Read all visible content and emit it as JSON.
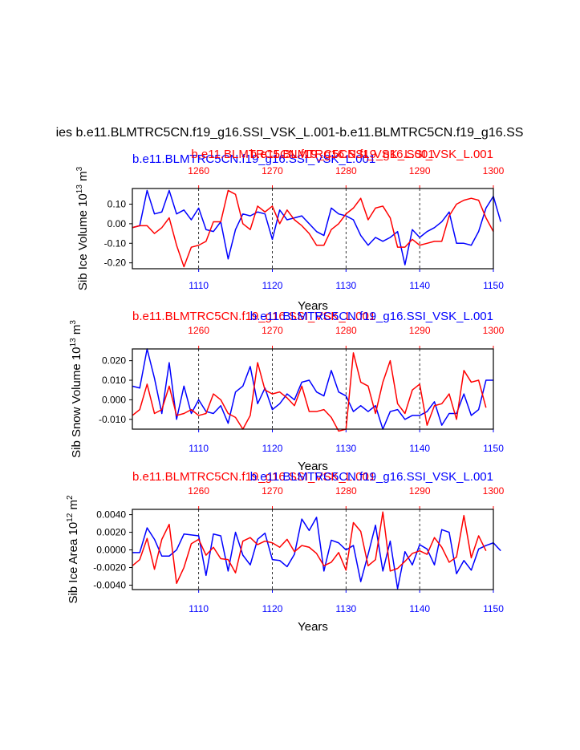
{
  "main_title": "ies b.e11.BLMTRC5CN.f19_g16.SSI_VSK_L.001-b.e11.BLMTRC5CN.f19_g16.SS",
  "colors": {
    "blue": "#0000ff",
    "red": "#ff0000",
    "frame": "#000000",
    "grid": "#000000"
  },
  "chart_data": [
    {
      "type": "line",
      "bottom_axis": {
        "range": [
          1101,
          1150
        ],
        "ticks": [
          1110,
          1120,
          1130,
          1140,
          1150
        ],
        "label": "Years"
      },
      "top_axis": {
        "range": [
          1251,
          1300
        ],
        "ticks": [
          1260,
          1270,
          1280,
          1290,
          1300
        ]
      },
      "y_axis": {
        "range": [
          -0.23,
          0.18
        ],
        "ticks": [
          -0.2,
          -0.1,
          0.0,
          0.1
        ],
        "tick_labels": [
          "-0.20",
          "-0.10",
          "0.00",
          "0.10"
        ],
        "label_main": "Sib Ice Volume 10",
        "label_exp": "13",
        "label_unit": " m",
        "label_unit_exp": "3"
      },
      "legend": [
        {
          "text": "b.e11.BLMTRC5CN.f19_g16.SSI_VSK_L.001",
          "color": "#0000ff",
          "position": "top-left"
        },
        {
          "text": "b.e11.BLMTRC5CN.f19_g16.SSI_VSK_L.001",
          "color": "#ff0000",
          "position": "top-right"
        },
        {
          "text": "b.e11.BLMTRC5CN.f19_g16.SSI_VSK_L.001",
          "color": "#ff0000",
          "position": "top-center"
        }
      ],
      "series": [
        {
          "name": "blue",
          "color": "#0000ff",
          "axis": "bottom",
          "values": [
            -0.02,
            -0.01,
            0.17,
            0.05,
            0.06,
            0.17,
            0.05,
            0.07,
            0.02,
            0.08,
            -0.03,
            -0.04,
            0.01,
            -0.18,
            -0.03,
            0.05,
            0.04,
            0.06,
            0.05,
            -0.08,
            0.07,
            0.02,
            0.03,
            0.04,
            0.0,
            -0.04,
            -0.06,
            0.08,
            0.05,
            0.04,
            0.02,
            -0.06,
            -0.11,
            -0.07,
            -0.09,
            -0.07,
            -0.04,
            -0.21,
            -0.03,
            -0.07,
            -0.04,
            -0.02,
            0.01,
            0.06,
            -0.1,
            -0.1,
            -0.11,
            -0.04,
            0.08,
            0.14,
            0.01
          ]
        },
        {
          "name": "red",
          "color": "#ff0000",
          "axis": "top",
          "values": [
            -0.02,
            -0.01,
            -0.01,
            -0.05,
            -0.02,
            0.03,
            -0.11,
            -0.22,
            -0.12,
            -0.11,
            -0.09,
            0.01,
            0.01,
            0.17,
            0.15,
            0.0,
            -0.03,
            0.09,
            0.06,
            0.09,
            0.0,
            0.07,
            0.02,
            -0.01,
            -0.05,
            -0.11,
            -0.11,
            -0.03,
            0.0,
            0.05,
            0.08,
            0.13,
            0.02,
            0.08,
            0.09,
            0.03,
            -0.12,
            -0.12,
            -0.08,
            -0.11,
            -0.1,
            -0.09,
            -0.09,
            0.04,
            0.1,
            0.12,
            0.13,
            0.12,
            0.03,
            -0.04
          ]
        }
      ]
    },
    {
      "type": "line",
      "bottom_axis": {
        "range": [
          1101,
          1150
        ],
        "ticks": [
          1110,
          1120,
          1130,
          1140,
          1150
        ],
        "label": "Years"
      },
      "top_axis": {
        "range": [
          1251,
          1300
        ],
        "ticks": [
          1260,
          1270,
          1280,
          1290,
          1300
        ]
      },
      "y_axis": {
        "range": [
          -0.015,
          0.026
        ],
        "ticks": [
          -0.01,
          0.0,
          0.01,
          0.02
        ],
        "tick_labels": [
          "-0.010",
          "0.000",
          "0.010",
          "0.020"
        ],
        "label_main": "Sib Snow Volume 10",
        "label_exp": "13",
        "label_unit": " m",
        "label_unit_exp": "3"
      },
      "legend": [
        {
          "text": "b.e11.BLMTRC5CN.f19_g16.SSI_VSK_L.001",
          "color": "#ff0000",
          "position": "top-left"
        },
        {
          "text": "b.e11.BLMTRC5CN.f19_g16.SSI_VSK_L.001",
          "color": "#0000ff",
          "position": "top-right"
        }
      ],
      "series": [
        {
          "name": "blue",
          "color": "#0000ff",
          "axis": "bottom",
          "values": [
            0.007,
            0.006,
            0.026,
            0.011,
            -0.007,
            0.019,
            -0.01,
            0.007,
            -0.007,
            0.0,
            -0.006,
            -0.007,
            -0.003,
            -0.012,
            0.004,
            0.007,
            0.017,
            -0.002,
            0.006,
            -0.005,
            -0.002,
            0.003,
            0.0,
            0.009,
            0.01,
            0.004,
            0.002,
            0.015,
            0.004,
            0.002,
            -0.006,
            -0.003,
            -0.006,
            -0.003,
            -0.015,
            -0.006,
            -0.005,
            -0.01,
            -0.008,
            -0.008,
            -0.006,
            -0.001,
            -0.013,
            -0.007,
            -0.007,
            0.003,
            -0.008,
            -0.005,
            0.01,
            0.01
          ]
        },
        {
          "name": "red",
          "color": "#ff0000",
          "axis": "top",
          "values": [
            -0.008,
            -0.005,
            0.008,
            -0.007,
            -0.005,
            0.007,
            -0.008,
            -0.007,
            -0.005,
            -0.008,
            -0.007,
            0.003,
            0.0,
            -0.007,
            -0.009,
            -0.015,
            -0.008,
            0.019,
            0.005,
            0.003,
            0.004,
            0.001,
            -0.003,
            0.007,
            -0.006,
            -0.006,
            -0.005,
            -0.009,
            -0.016,
            -0.015,
            0.024,
            0.009,
            0.007,
            -0.007,
            0.009,
            0.02,
            -0.002,
            -0.007,
            0.005,
            0.008,
            -0.013,
            -0.003,
            -0.002,
            0.003,
            -0.01,
            0.015,
            0.009,
            0.01,
            -0.004
          ]
        }
      ]
    },
    {
      "type": "line",
      "bottom_axis": {
        "range": [
          1101,
          1150
        ],
        "ticks": [
          1110,
          1120,
          1130,
          1140,
          1150
        ],
        "label": "Years"
      },
      "top_axis": {
        "range": [
          1251,
          1300
        ],
        "ticks": [
          1260,
          1270,
          1280,
          1290,
          1300
        ]
      },
      "y_axis": {
        "range": [
          -0.0045,
          0.0046
        ],
        "ticks": [
          -0.004,
          -0.002,
          0.0,
          0.002,
          0.004
        ],
        "tick_labels": [
          "-0.0040",
          "-0.0020",
          "0.0000",
          "0.0020",
          "0.0040"
        ],
        "label_main": "Sib Ice Area 10",
        "label_exp": "12",
        "label_unit": " m",
        "label_unit_exp": "2"
      },
      "legend": [
        {
          "text": "b.e11.BLMTRC5CN.f19_g16.SSI_VSK_L.001",
          "color": "#ff0000",
          "position": "top-left"
        },
        {
          "text": "b.e11.BLMTRC5CN.f19_g16.SSI_VSK_L.001",
          "color": "#0000ff",
          "position": "top-right"
        }
      ],
      "series": [
        {
          "name": "blue",
          "color": "#0000ff",
          "axis": "bottom",
          "values": [
            -0.0003,
            -0.0003,
            0.0025,
            0.0012,
            -0.0007,
            -0.0007,
            0.0,
            0.0018,
            0.0017,
            0.0016,
            -0.0029,
            0.0018,
            0.0016,
            -0.0024,
            0.002,
            -0.0006,
            -0.0017,
            0.0012,
            0.0019,
            -0.0011,
            -0.0012,
            -0.0019,
            -0.0005,
            0.0035,
            0.0022,
            0.0037,
            -0.0024,
            0.0011,
            0.0008,
            0.0,
            0.0005,
            -0.0036,
            -0.0005,
            0.0028,
            -0.0024,
            0.001,
            -0.0044,
            -0.0002,
            -0.0017,
            0.0006,
            0.0001,
            -0.0017,
            0.0023,
            0.002,
            -0.0027,
            -0.0012,
            -0.0023,
            0.0001,
            0.0005,
            0.0008,
            -0.0001
          ]
        },
        {
          "name": "red",
          "color": "#ff0000",
          "axis": "top",
          "values": [
            -0.0018,
            -0.0011,
            0.0013,
            -0.0022,
            0.0012,
            0.0029,
            -0.0038,
            -0.002,
            0.0007,
            0.0012,
            -0.0006,
            0.0003,
            -0.001,
            -0.0011,
            -0.0026,
            0.001,
            0.0014,
            0.0006,
            0.001,
            0.0008,
            0.0003,
            0.0012,
            -0.0002,
            0.0005,
            0.0003,
            -0.0004,
            -0.0018,
            -0.0014,
            -0.0003,
            -0.0023,
            0.0031,
            0.0021,
            -0.0018,
            -0.0011,
            0.0043,
            -0.0024,
            -0.0021,
            -0.0013,
            -0.0004,
            -0.0001,
            -0.0005,
            0.0014,
            0.0003,
            -0.0014,
            -0.0008,
            0.0039,
            -0.0009,
            0.0016,
            -0.0001
          ]
        }
      ]
    }
  ]
}
